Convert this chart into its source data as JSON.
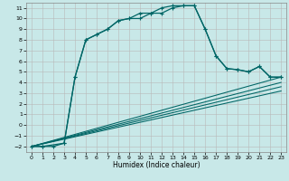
{
  "xlabel": "Humidex (Indice chaleur)",
  "bg_color": "#c8e8e8",
  "line_color": "#006666",
  "grid_color": "#b8b8b8",
  "xlim": [
    -0.5,
    23.5
  ],
  "ylim": [
    -2.5,
    11.5
  ],
  "xticks": [
    0,
    1,
    2,
    3,
    4,
    5,
    6,
    7,
    8,
    9,
    10,
    11,
    12,
    13,
    14,
    15,
    16,
    17,
    18,
    19,
    20,
    21,
    22,
    23
  ],
  "yticks": [
    -2,
    -1,
    0,
    1,
    2,
    3,
    4,
    5,
    6,
    7,
    8,
    9,
    10,
    11
  ],
  "curve1_x": [
    0,
    1,
    2,
    3,
    4,
    5,
    6,
    7,
    8,
    9,
    10,
    11,
    12,
    13,
    14,
    15,
    16,
    17,
    18,
    19,
    20,
    21,
    22,
    23
  ],
  "curve1_y": [
    -2,
    -2,
    -2,
    -1.7,
    4.5,
    8.0,
    8.5,
    9.0,
    9.8,
    10.0,
    10.0,
    10.5,
    10.5,
    11.0,
    11.2,
    11.2,
    9.0,
    6.5,
    5.3,
    5.2,
    5.0,
    5.5,
    4.5,
    4.5
  ],
  "curve2_x": [
    0,
    1,
    3,
    4,
    5,
    6,
    7,
    8,
    9,
    10,
    11,
    12,
    13,
    14,
    15,
    16,
    17,
    18,
    19,
    20,
    21,
    22,
    23
  ],
  "curve2_y": [
    -2,
    -2,
    -1.7,
    4.5,
    8.0,
    8.5,
    9.0,
    9.8,
    10.0,
    10.5,
    10.5,
    11.0,
    11.2,
    11.2,
    11.2,
    9.0,
    6.5,
    5.3,
    5.2,
    5.0,
    5.5,
    4.5,
    4.5
  ],
  "line1_x": [
    0,
    23
  ],
  "line1_y": [
    -2,
    4.5
  ],
  "line2_x": [
    0,
    23
  ],
  "line2_y": [
    -2,
    4.0
  ],
  "line3_x": [
    0,
    23
  ],
  "line3_y": [
    -2,
    3.6
  ],
  "line4_x": [
    0,
    23
  ],
  "line4_y": [
    -2,
    3.2
  ],
  "xlabel_fontsize": 5.5,
  "tick_fontsize": 4.5,
  "linewidth": 0.9,
  "markersize": 3.0
}
